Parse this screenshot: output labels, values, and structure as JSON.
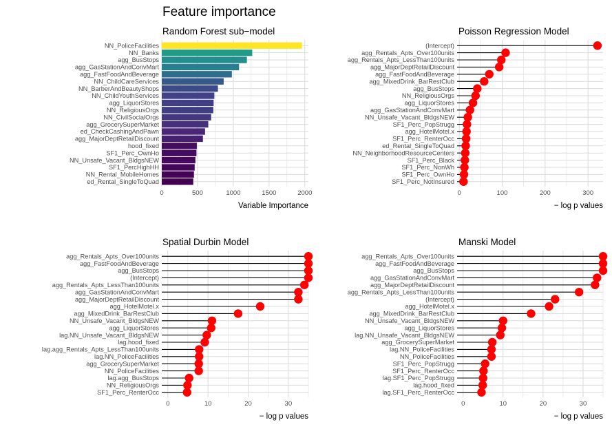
{
  "title": "Feature importance",
  "chart_data": [
    {
      "type": "bar",
      "title": "Random Forest sub−model",
      "xlabel": "Variable Importance",
      "xlim": [
        0,
        2050
      ],
      "xticks": [
        0,
        500,
        1000,
        1500,
        2000
      ],
      "fill_scale": "viridis",
      "categories": [
        "NN_PoliceFacilities",
        "NN_Banks",
        "agg_BusStops",
        "agg_GasStationAndConvMart",
        "agg_FastFoodAndBeverage",
        "NN_ChildCareServices",
        "NN_BarberAndBeautyShops",
        "NN_ChildYouthServices",
        "agg_LiquorStores",
        "NN_ReligiousOrgs",
        "NN_CivilSocialOrgs",
        "agg_GrocerySuperMarket",
        "ed_CheckCashingAndPawn",
        "agg_MajorDeptRetailDiscount",
        "hood_fixed",
        "SF1_Perc_OwnHo",
        "NN_Unsafe_Vacant_BldgsNEW",
        "SF1_PercHighHH",
        "NN_Rental_MobileHomes",
        "ed_Rental_SingleToQuad"
      ],
      "values": [
        1960,
        1265,
        1190,
        1080,
        980,
        865,
        785,
        735,
        725,
        720,
        690,
        650,
        605,
        575,
        490,
        485,
        470,
        460,
        450,
        440
      ]
    },
    {
      "type": "lollipop",
      "title": "Poisson Regression Model",
      "xlabel": "− log p values",
      "xlim": [
        -5,
        335
      ],
      "xticks": [
        0,
        100,
        200,
        300
      ],
      "point_color": "#ff0000",
      "categories": [
        "(Intercept)",
        "agg_Rentals_Apts_Over100units",
        "agg_Rentals_Apts_LessThan100units",
        "agg_MajorDeptRetailDiscount",
        "agg_FastFoodAndBeverage",
        "agg_MixedDrink_BarRestClub",
        "agg_BusStops",
        "NN_ReligiousOrgs",
        "agg_LiquorStores",
        "agg_GasStationAndConvMart",
        "NN_Unsafe_Vacant_BldgsNEW",
        "SF1_Perc_PopStrugg",
        "agg_HotelMotel.x",
        "SF1_Perc_RenterOcc",
        "ed_Rental_SingleToQuad",
        "NN_NeighborhoodResourceCenters",
        "SF1_Perc_Black",
        "SF1_Perc_NonWh",
        "SF1_Perc_OwnHo",
        "SF1_Perc_NotInsured"
      ],
      "values": [
        322,
        108,
        98,
        93,
        70,
        58,
        42,
        38,
        32,
        25,
        20,
        18,
        17,
        16,
        15,
        14,
        13,
        12,
        11,
        10
      ]
    },
    {
      "type": "lollipop",
      "title": "Spatial Durbin Model",
      "xlabel": "− log p values",
      "xlim": [
        -1.5,
        35
      ],
      "xticks": [
        0,
        10,
        20,
        30
      ],
      "point_color": "#ff0000",
      "categories": [
        "agg_Rentals_Apts_Over100units",
        "agg_FastFoodAndBeverage",
        "agg_BusStops",
        "(Intercept)",
        "agg_Rentals_Apts_LessThan100units",
        "agg_GasStationAndConvMart",
        "agg_MajorDeptRetailDiscount",
        "agg_HotelMotel.x",
        "agg_MixedDrink_BarRestClub",
        "NN_Unsafe_Vacant_BldgsNEW",
        "agg_LiquorStores",
        "lag.NN_Unsafe_Vacant_BldgsNEW",
        "lag.hood_fixed",
        "lag.agg_Rentals_Apts_LessThan100units",
        "lag.NN_PoliceFacilities",
        "agg_GrocerySuperMarket",
        "NN_PoliceFacilities",
        "lag.agg_BusStops",
        "NN_ReligiousOrgs",
        "SF1_Perc_RenterOcc"
      ],
      "values": [
        35,
        35,
        35,
        35,
        34,
        32.5,
        32.5,
        23,
        17.5,
        11,
        10.8,
        9.7,
        9.2,
        7.8,
        7.8,
        7.7,
        7.7,
        5.3,
        4.9,
        4.8
      ]
    },
    {
      "type": "lollipop",
      "title": "Manski Model",
      "xlabel": "− log p values",
      "xlim": [
        -1.5,
        35
      ],
      "xticks": [
        0,
        10,
        20,
        30
      ],
      "point_color": "#ff0000",
      "categories": [
        "agg_Rentals_Apts_Over100units",
        "agg_FastFoodAndBeverage",
        "agg_BusStops",
        "agg_GasStationAndConvMart",
        "agg_MajorDeptRetailDiscount",
        "agg_Rentals_Apts_LessThan100units",
        "(Intercept)",
        "agg_HotelMotel.x",
        "agg_MixedDrink_BarRestClub",
        "NN_Unsafe_Vacant_BldgsNEW",
        "agg_LiquorStores",
        "lag.NN_Unsafe_Vacant_BldgsNEW",
        "agg_GrocerySuperMarket",
        "lag.NN_PoliceFacilities",
        "NN_PoliceFacilities",
        "SF1_Perc_PopStrugg",
        "SF1_Perc_RenterOcc",
        "lag.SF1_Perc_PopStrugg",
        "lag.hood_fixed",
        "lag.SF1_Perc_RenterOcc"
      ],
      "values": [
        35,
        35,
        35,
        33.5,
        33,
        29,
        23,
        21.5,
        17,
        10,
        9.7,
        9.3,
        7.3,
        7.1,
        7.1,
        5.5,
        5.1,
        5,
        4.9,
        4.6
      ]
    }
  ]
}
